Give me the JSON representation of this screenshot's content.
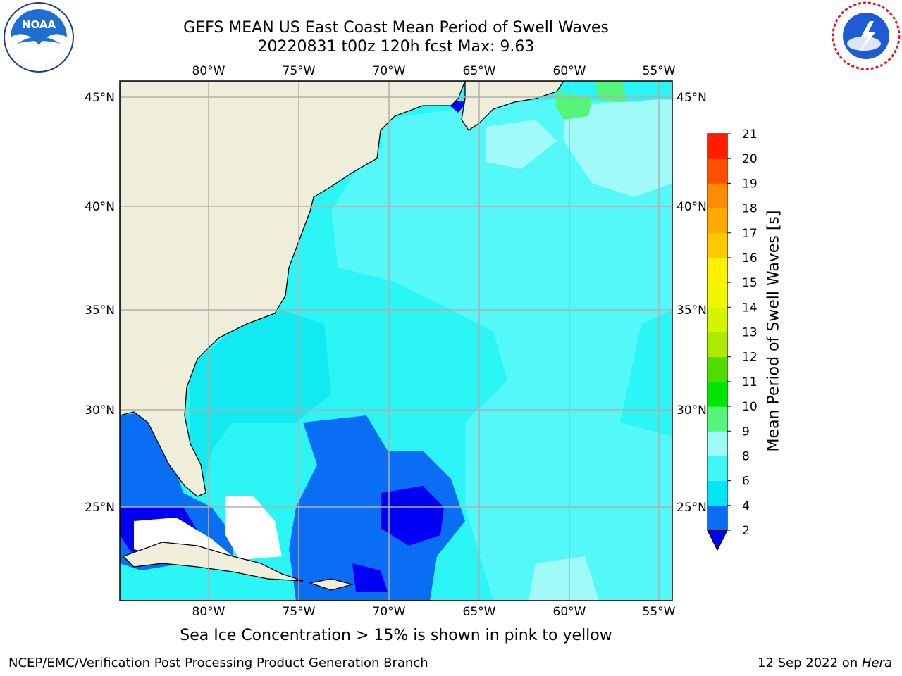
{
  "title_line1": "GEFS MEAN US East Coast Mean Period of Swell Waves",
  "title_line2": "20220831 t00z 120h fcst   Max: 9.63",
  "caption": "Sea Ice Concentration > 15% is shown in pink to yellow",
  "footer_left": "NCEP/EMC/Verification Post Processing Product Generation Branch",
  "footer_right_date": "12 Sep 2022 on ",
  "footer_right_host": "Hera",
  "logos": {
    "left_icon": "noaa-logo",
    "left_text": "NOAA",
    "right_icon": "national-weather-service-logo"
  },
  "map": {
    "lon_labels": [
      "80°W",
      "75°W",
      "70°W",
      "65°W",
      "60°W",
      "55°W"
    ],
    "lat_labels": [
      "45°N",
      "40°N",
      "35°N",
      "30°N",
      "25°N"
    ],
    "land_color": "#efeedb",
    "ocean_base_color": "#2bf5f5"
  },
  "colorbar": {
    "label": "Mean Period of Swell Waves [s]",
    "ticks": [
      "2",
      "4",
      "6",
      "8",
      "9",
      "10",
      "11",
      "12",
      "13",
      "14",
      "15",
      "16",
      "17",
      "18",
      "19",
      "20",
      "21"
    ],
    "colors": [
      "#0a6ef5",
      "#00e6f5",
      "#40f5f5",
      "#9ffaf8",
      "#55f57a",
      "#00e600",
      "#4fdc00",
      "#aaeb00",
      "#d4f500",
      "#f0f500",
      "#fff000",
      "#ffc800",
      "#ffaa00",
      "#ff8c00",
      "#ff5000",
      "#ff1e00"
    ],
    "under_color": "#0000f5"
  }
}
